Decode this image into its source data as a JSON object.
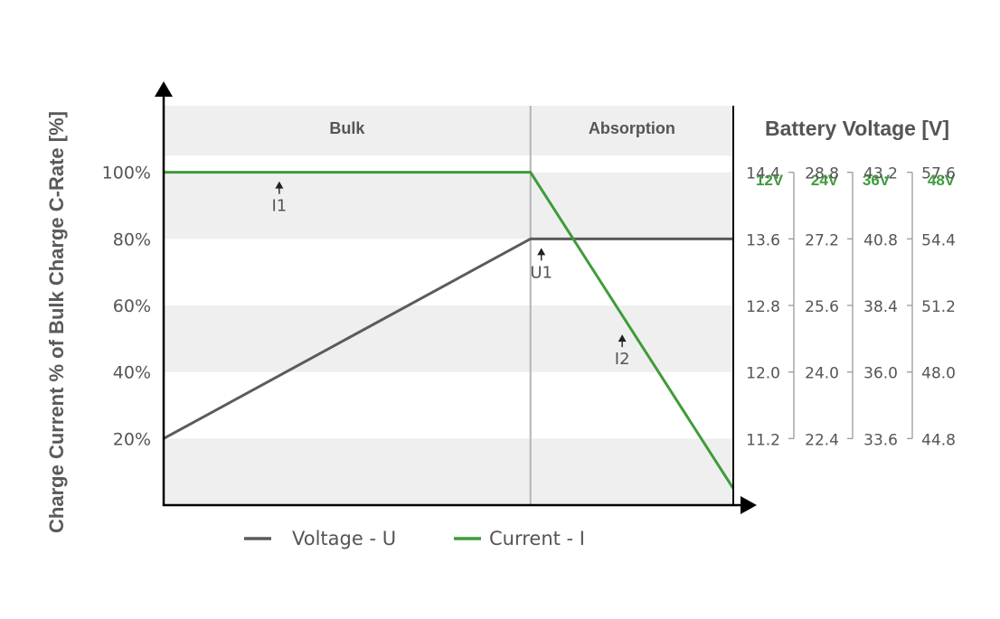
{
  "chart_data": {
    "type": "line",
    "ylabel": "Charge Current % of Bulk Charge C-Rate [%]",
    "y_tick_labels": [
      "100%",
      "80%",
      "60%",
      "40%",
      "20%"
    ],
    "y_tick_values": [
      100,
      80,
      60,
      40,
      20
    ],
    "ylim": [
      0,
      120
    ],
    "xlim": [
      0,
      100
    ],
    "phases": [
      {
        "label": "Bulk",
        "x_start": 0,
        "x_end": 64.4
      },
      {
        "label": "Absorption",
        "x_start": 64.4,
        "x_end": 100
      }
    ],
    "series": [
      {
        "name": "Voltage - U",
        "color": "#5b5b5b",
        "x": [
          0,
          64.4,
          100
        ],
        "y": [
          20,
          80,
          80
        ]
      },
      {
        "name": "Current - I",
        "color": "#3f9b3c",
        "x": [
          0,
          64.4,
          100
        ],
        "y": [
          100,
          100,
          5
        ]
      }
    ],
    "annotations": [
      {
        "label": "I1",
        "x": 20.3,
        "y": 100
      },
      {
        "label": "U1",
        "x": 66.3,
        "y": 80
      },
      {
        "label": "I2",
        "x": 80.5,
        "y": 54
      }
    ],
    "battery_voltage": {
      "title": "Battery Voltage [V]",
      "header_color": "#3f9b3c",
      "columns": [
        {
          "header": "12V",
          "values": [
            "14.4",
            "13.6",
            "12.8",
            "12.0",
            "11.2"
          ]
        },
        {
          "header": "24V",
          "values": [
            "28.8",
            "27.2",
            "25.6",
            "24.0",
            "22.4"
          ]
        },
        {
          "header": "36V",
          "values": [
            "43.2",
            "40.8",
            "38.4",
            "36.0",
            "33.6"
          ]
        },
        {
          "header": "48V",
          "values": [
            "57.6",
            "54.4",
            "51.2",
            "48.0",
            "44.8"
          ]
        }
      ]
    },
    "legend_placement": "bottom",
    "grid": "alternating horizontal bands"
  }
}
